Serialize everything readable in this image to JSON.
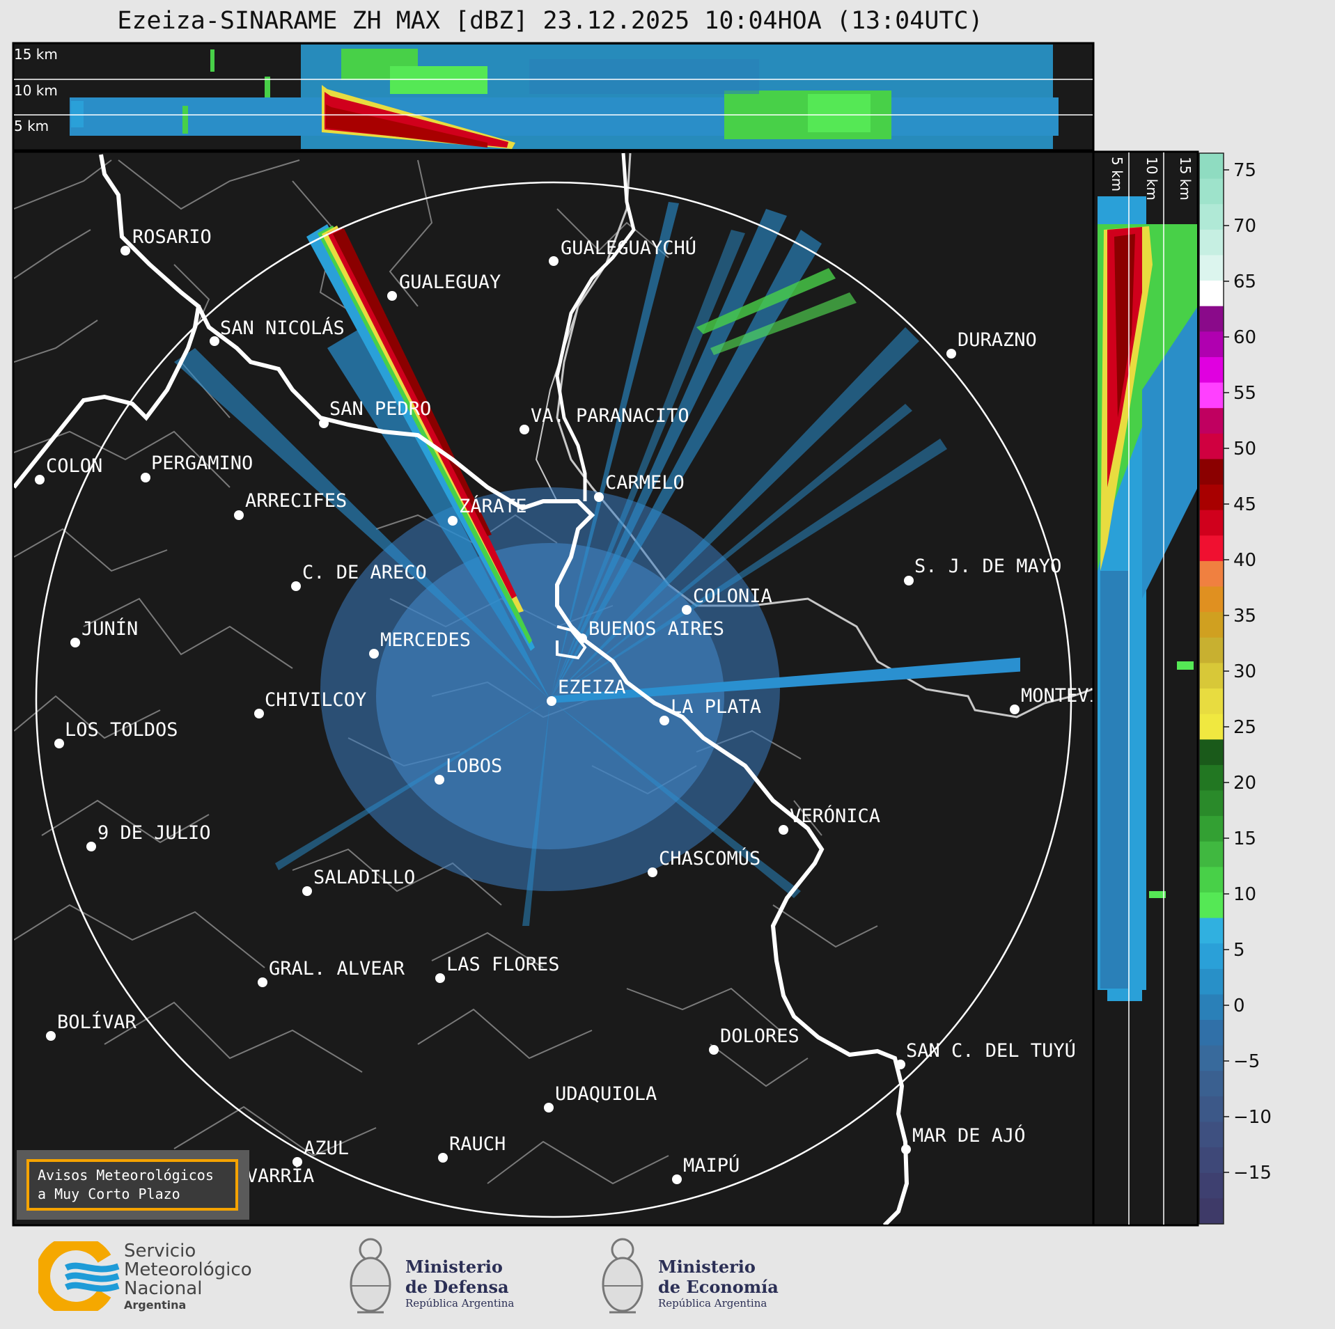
{
  "title": "Ezeiza-SINARAME ZH MAX [dBZ] 23.12.2025 10:04HOA (13:04UTC)",
  "top_panel": {
    "km_labels": [
      "15 km",
      "10 km",
      "5 km"
    ]
  },
  "side_panel": {
    "km_labels": [
      "5 km",
      "10 km",
      "15 km"
    ]
  },
  "colorbar": {
    "unit": "dBZ",
    "ticks": [
      "75",
      "70",
      "65",
      "60",
      "55",
      "50",
      "45",
      "40",
      "35",
      "30",
      "25",
      "20",
      "15",
      "10",
      "5",
      "0",
      "−5",
      "−10",
      "−15"
    ],
    "colors": [
      "#8fdcc1",
      "#9ee3cb",
      "#b0e9d6",
      "#c6efe2",
      "#dcf5ee",
      "#ffffff",
      "#8a0a8a",
      "#b000b0",
      "#e000e0",
      "#ff40ff",
      "#c00060",
      "#d00040",
      "#8b0000",
      "#a80000",
      "#d0001c",
      "#f01030",
      "#f08040",
      "#e09020",
      "#d0a020",
      "#c8b030",
      "#d8c838",
      "#e8dc40",
      "#f0e840",
      "#1a5a1a",
      "#227722",
      "#2a8a2a",
      "#33a033",
      "#40b840",
      "#48d048",
      "#55e855",
      "#30b0e0",
      "#2aa0d8",
      "#2890c8",
      "#2a80b8",
      "#3070a8",
      "#386a9c",
      "#3a6090",
      "#3c5888",
      "#3e5080",
      "#3e4878",
      "#3e4070",
      "#3e3a68"
    ]
  },
  "cities": [
    {
      "name": "ROSARIO"
    },
    {
      "name": "GUALEGUAYCHÚ"
    },
    {
      "name": "GUALEGUAY"
    },
    {
      "name": "SAN NICOLÁS"
    },
    {
      "name": "DURAZNO"
    },
    {
      "name": "SAN PEDRO"
    },
    {
      "name": "VA. PARANACITO"
    },
    {
      "name": "COLON"
    },
    {
      "name": "PERGAMINO"
    },
    {
      "name": "CARMELO"
    },
    {
      "name": "ARRECIFES"
    },
    {
      "name": "ZÁRATE"
    },
    {
      "name": "C. DE ARECO"
    },
    {
      "name": "S. J. DE MAYO"
    },
    {
      "name": "COLONIA"
    },
    {
      "name": "JUNÍN"
    },
    {
      "name": "MERCEDES"
    },
    {
      "name": "BUENOS AIRES"
    },
    {
      "name": "EZEIZA"
    },
    {
      "name": "CHIVILCOY"
    },
    {
      "name": "MONTEVIDEO"
    },
    {
      "name": "LA PLATA"
    },
    {
      "name": "LOS TOLDOS"
    },
    {
      "name": "LOBOS"
    },
    {
      "name": "VERÓNICA"
    },
    {
      "name": "9 DE JULIO"
    },
    {
      "name": "CHASCOMÚS"
    },
    {
      "name": "SALADILLO"
    },
    {
      "name": "GRAL. ALVEAR"
    },
    {
      "name": "LAS FLORES"
    },
    {
      "name": "BOLÍVAR"
    },
    {
      "name": "DOLORES"
    },
    {
      "name": "SAN C. DEL TUYÚ"
    },
    {
      "name": "UDAQUIOLA"
    },
    {
      "name": "MAR DE AJÓ"
    },
    {
      "name": "AZUL"
    },
    {
      "name": "RAUCH"
    },
    {
      "name": "MAIPÚ"
    },
    {
      "name": "OLAVARRÍA"
    }
  ],
  "warning_box": {
    "line1": "Avisos Meteorológicos",
    "line2": "a Muy Corto Plazo"
  },
  "logos": {
    "smn": {
      "line1": "Servicio",
      "line2": "Meteorológico",
      "line3": "Nacional",
      "line4": "Argentina"
    },
    "defensa": {
      "line1": "Ministerio",
      "line2": "de Defensa",
      "line3": "República Argentina"
    },
    "economia": {
      "line1": "Ministerio",
      "line2": "de Economía",
      "line3": "República Argentina"
    }
  }
}
